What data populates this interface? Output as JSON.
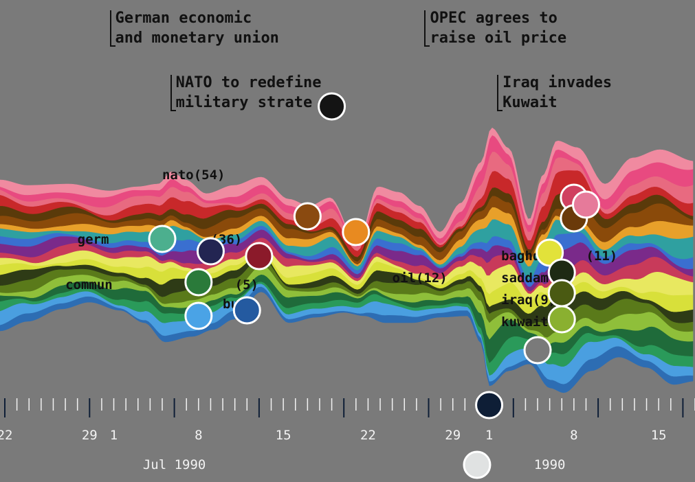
{
  "chart_data": {
    "type": "area",
    "variant": "streamgraph",
    "x_start": "1990-06-22",
    "x_end": "1990-08-18",
    "x_tick_labels": [
      "22",
      "29",
      "1",
      "8",
      "15",
      "22",
      "29",
      "1",
      "8",
      "15"
    ],
    "month_labels": [
      "Jul 1990",
      "1990"
    ],
    "annotations": [
      {
        "date": "1990-07-01",
        "lines": [
          "German economic",
          "and monetary union"
        ]
      },
      {
        "date": "1990-07-06",
        "lines": [
          "NATO to redefine",
          "military strate"
        ]
      },
      {
        "date": "1990-07-27",
        "lines": [
          "OPEC agrees to",
          "raise oil price"
        ]
      },
      {
        "date": "1990-08-02",
        "lines": [
          "Iraq invades",
          "Kuwait"
        ]
      }
    ],
    "stream_labels": [
      {
        "text": "nato(54)",
        "date": "1990-07-05"
      },
      {
        "text": "germ",
        "date": "1990-06-28"
      },
      {
        "text": "(36)",
        "date": "1990-07-09"
      },
      {
        "text": "commun",
        "date": "1990-06-27"
      },
      {
        "text": "(5)",
        "date": "1990-07-11"
      },
      {
        "text": "bush",
        "date": "1990-07-10"
      },
      {
        "text": "oil(12)",
        "date": "1990-07-24"
      },
      {
        "text": "baghd",
        "date": "1990-08-02"
      },
      {
        "text": "(11)",
        "date": "1990-08-09"
      },
      {
        "text": "saddam(1",
        "date": "1990-08-02"
      },
      {
        "text": "iraq(9)",
        "date": "1990-08-02"
      },
      {
        "text": "kuwait(8",
        "date": "1990-08-02"
      }
    ],
    "series": [
      {
        "color": "#2d6db3"
      },
      {
        "color": "#4a9fe0"
      },
      {
        "color": "#2a9a5a"
      },
      {
        "color": "#1f6b3a"
      },
      {
        "color": "#8fbf3a"
      },
      {
        "color": "#5a7a1a"
      },
      {
        "color": "#2e3b16"
      },
      {
        "color": "#d8e03a"
      },
      {
        "color": "#e8e860"
      },
      {
        "color": "#c83a5a"
      },
      {
        "color": "#7a2a8a"
      },
      {
        "color": "#3a6fd0"
      },
      {
        "color": "#2fa0a0"
      },
      {
        "color": "#e8a02a"
      },
      {
        "color": "#8a4a0a"
      },
      {
        "color": "#5a3a0a"
      },
      {
        "color": "#c8282a"
      },
      {
        "color": "#e86a80"
      },
      {
        "color": "#e84a80"
      },
      {
        "color": "#f08aa0"
      }
    ],
    "markers": [
      {
        "date": "1990-07-19",
        "color": "#141414"
      },
      {
        "date": "1990-07-05",
        "color": "#4caf8e"
      },
      {
        "date": "1990-07-09",
        "color": "#232552"
      },
      {
        "date": "1990-07-13",
        "color": "#8b1a2a"
      },
      {
        "date": "1990-07-08",
        "color": "#2a7a3a"
      },
      {
        "date": "1990-07-08",
        "color": "#4aa3e6"
      },
      {
        "date": "1990-07-12",
        "color": "#245aa0"
      },
      {
        "date": "1990-07-17",
        "color": "#8a4a10"
      },
      {
        "date": "1990-07-21",
        "color": "#e88a20"
      },
      {
        "date": "1990-08-06",
        "color": "#e2e23a"
      },
      {
        "date": "1990-08-07",
        "color": "#1e2a14"
      },
      {
        "date": "1990-08-07",
        "color": "#4a5a12"
      },
      {
        "date": "1990-08-07",
        "color": "#8ab030"
      },
      {
        "date": "1990-08-05",
        "color": "#7a7a7a"
      },
      {
        "date": "1990-08-08",
        "color": "#d04060"
      },
      {
        "date": "1990-08-08",
        "color": "#6a3a0a"
      },
      {
        "date": "1990-08-09",
        "color": "#e67a9a"
      },
      {
        "date": "1990-08-01",
        "color": "#0e1e36"
      },
      {
        "date": "1990-07-31",
        "color": "#e0e2e2"
      }
    ]
  }
}
